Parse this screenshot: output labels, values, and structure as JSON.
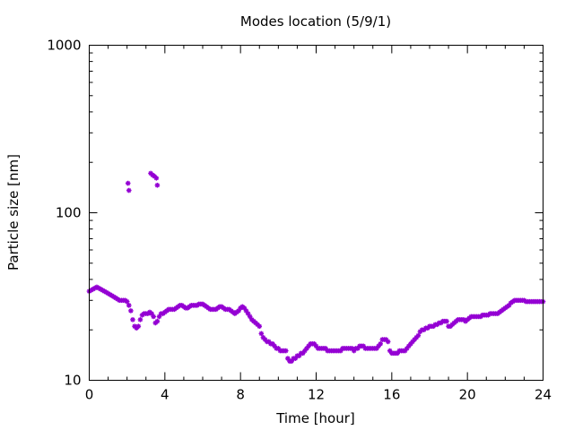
{
  "chart_data": {
    "type": "scatter",
    "title": "Modes location (5/9/1)",
    "xlabel": "Time [hour]",
    "ylabel": "Particle size [nm]",
    "xlim": [
      0,
      24
    ],
    "ylim": [
      10,
      1000
    ],
    "yscale": "log",
    "grid": false,
    "x_ticks": [
      0,
      4,
      8,
      12,
      16,
      20,
      24
    ],
    "x_tick_labels": [
      "0",
      "4",
      "8",
      "12",
      "16",
      "20",
      "24"
    ],
    "y_ticks": [
      10,
      100,
      1000
    ],
    "y_tick_labels": [
      "10",
      "100",
      "1000"
    ],
    "marker_color": "#9400d3",
    "series": [
      {
        "points": [
          [
            0.0,
            34
          ],
          [
            0.1,
            34.5
          ],
          [
            0.2,
            35
          ],
          [
            0.3,
            35.5
          ],
          [
            0.4,
            36
          ],
          [
            0.5,
            35.5
          ],
          [
            0.6,
            35
          ],
          [
            0.7,
            34.5
          ],
          [
            0.8,
            34
          ],
          [
            0.9,
            33.5
          ],
          [
            1.0,
            33
          ],
          [
            1.1,
            32.5
          ],
          [
            1.2,
            32
          ],
          [
            1.3,
            31.5
          ],
          [
            1.4,
            31
          ],
          [
            1.5,
            30.5
          ],
          [
            1.6,
            30
          ],
          [
            1.7,
            30
          ],
          [
            1.8,
            30
          ],
          [
            1.9,
            30
          ],
          [
            2.0,
            29.5
          ],
          [
            2.1,
            28
          ],
          [
            2.2,
            26
          ],
          [
            2.3,
            23
          ],
          [
            2.4,
            21
          ],
          [
            2.5,
            20.5
          ],
          [
            2.6,
            21
          ],
          [
            2.7,
            23
          ],
          [
            2.8,
            24.5
          ],
          [
            2.9,
            25
          ],
          [
            3.0,
            25
          ],
          [
            3.1,
            25
          ],
          [
            3.2,
            25.5
          ],
          [
            3.3,
            25
          ],
          [
            3.4,
            24
          ],
          [
            3.5,
            22
          ],
          [
            3.6,
            22.5
          ],
          [
            3.7,
            24
          ],
          [
            3.8,
            25
          ],
          [
            3.9,
            25
          ],
          [
            4.0,
            25.5
          ],
          [
            4.1,
            26
          ],
          [
            4.2,
            26.5
          ],
          [
            4.3,
            26.5
          ],
          [
            4.4,
            26.5
          ],
          [
            4.5,
            26.5
          ],
          [
            4.6,
            27
          ],
          [
            4.7,
            27.5
          ],
          [
            4.8,
            28
          ],
          [
            4.9,
            28
          ],
          [
            5.0,
            27.5
          ],
          [
            5.1,
            27
          ],
          [
            5.2,
            27
          ],
          [
            5.3,
            27.5
          ],
          [
            5.4,
            28
          ],
          [
            5.5,
            28
          ],
          [
            5.6,
            28
          ],
          [
            5.7,
            28
          ],
          [
            5.8,
            28.5
          ],
          [
            5.9,
            28.5
          ],
          [
            6.0,
            28.5
          ],
          [
            6.1,
            28
          ],
          [
            6.2,
            27.5
          ],
          [
            6.3,
            27
          ],
          [
            6.4,
            26.5
          ],
          [
            6.5,
            26.5
          ],
          [
            6.6,
            26.5
          ],
          [
            6.7,
            26.5
          ],
          [
            6.8,
            27
          ],
          [
            6.9,
            27.5
          ],
          [
            7.0,
            27.5
          ],
          [
            7.1,
            27
          ],
          [
            7.2,
            26.5
          ],
          [
            7.3,
            26.5
          ],
          [
            7.4,
            26.5
          ],
          [
            7.5,
            26
          ],
          [
            7.6,
            25.5
          ],
          [
            7.7,
            25
          ],
          [
            7.8,
            25.5
          ],
          [
            7.9,
            26
          ],
          [
            8.0,
            27
          ],
          [
            8.1,
            27.5
          ],
          [
            8.2,
            27
          ],
          [
            8.3,
            26
          ],
          [
            8.4,
            25
          ],
          [
            8.5,
            24
          ],
          [
            8.6,
            23
          ],
          [
            8.7,
            22.5
          ],
          [
            8.8,
            22
          ],
          [
            8.9,
            21.5
          ],
          [
            9.0,
            21
          ],
          [
            9.1,
            19
          ],
          [
            9.2,
            18
          ],
          [
            9.3,
            17.5
          ],
          [
            9.4,
            17
          ],
          [
            9.5,
            17
          ],
          [
            9.6,
            16.5
          ],
          [
            9.7,
            16.5
          ],
          [
            9.8,
            16
          ],
          [
            9.9,
            15.5
          ],
          [
            10.0,
            15.5
          ],
          [
            10.1,
            15
          ],
          [
            10.2,
            15
          ],
          [
            10.3,
            15
          ],
          [
            10.4,
            15
          ],
          [
            10.5,
            13.5
          ],
          [
            10.6,
            13
          ],
          [
            10.7,
            13
          ],
          [
            10.8,
            13.5
          ],
          [
            10.9,
            13.5
          ],
          [
            11.0,
            14
          ],
          [
            11.1,
            14
          ],
          [
            11.2,
            14.5
          ],
          [
            11.3,
            14.5
          ],
          [
            11.4,
            15
          ],
          [
            11.5,
            15.5
          ],
          [
            11.6,
            16
          ],
          [
            11.7,
            16.5
          ],
          [
            11.8,
            16.5
          ],
          [
            11.9,
            16.5
          ],
          [
            12.0,
            16
          ],
          [
            12.1,
            15.5
          ],
          [
            12.2,
            15.5
          ],
          [
            12.3,
            15.5
          ],
          [
            12.4,
            15.5
          ],
          [
            12.5,
            15.5
          ],
          [
            12.6,
            15
          ],
          [
            12.7,
            15
          ],
          [
            12.8,
            15
          ],
          [
            12.9,
            15
          ],
          [
            13.0,
            15
          ],
          [
            13.1,
            15
          ],
          [
            13.2,
            15
          ],
          [
            13.3,
            15
          ],
          [
            13.4,
            15.5
          ],
          [
            13.5,
            15.5
          ],
          [
            13.6,
            15.5
          ],
          [
            13.7,
            15.5
          ],
          [
            13.8,
            15.5
          ],
          [
            13.9,
            15.5
          ],
          [
            14.0,
            15
          ],
          [
            14.1,
            15.5
          ],
          [
            14.2,
            15.5
          ],
          [
            14.3,
            16
          ],
          [
            14.4,
            16
          ],
          [
            14.5,
            16
          ],
          [
            14.6,
            15.5
          ],
          [
            14.7,
            15.5
          ],
          [
            14.8,
            15.5
          ],
          [
            14.9,
            15.5
          ],
          [
            15.0,
            15.5
          ],
          [
            15.1,
            15.5
          ],
          [
            15.2,
            15.5
          ],
          [
            15.3,
            16
          ],
          [
            15.4,
            16.5
          ],
          [
            15.5,
            17.5
          ],
          [
            15.6,
            17.5
          ],
          [
            15.7,
            17.5
          ],
          [
            15.8,
            17
          ],
          [
            15.9,
            15
          ],
          [
            16.0,
            14.5
          ],
          [
            16.1,
            14.5
          ],
          [
            16.2,
            14.5
          ],
          [
            16.3,
            14.5
          ],
          [
            16.4,
            15
          ],
          [
            16.5,
            15
          ],
          [
            16.6,
            15
          ],
          [
            16.7,
            15
          ],
          [
            16.8,
            15.5
          ],
          [
            16.9,
            16
          ],
          [
            17.0,
            16.5
          ],
          [
            17.1,
            17
          ],
          [
            17.2,
            17.5
          ],
          [
            17.3,
            18
          ],
          [
            17.4,
            18.5
          ],
          [
            17.5,
            19.5
          ],
          [
            17.6,
            20
          ],
          [
            17.7,
            20
          ],
          [
            17.8,
            20.5
          ],
          [
            17.9,
            20.5
          ],
          [
            18.0,
            21
          ],
          [
            18.1,
            21
          ],
          [
            18.2,
            21
          ],
          [
            18.3,
            21.5
          ],
          [
            18.4,
            21.5
          ],
          [
            18.5,
            22
          ],
          [
            18.6,
            22
          ],
          [
            18.7,
            22.5
          ],
          [
            18.8,
            22.5
          ],
          [
            18.9,
            22.5
          ],
          [
            19.0,
            21
          ],
          [
            19.1,
            21
          ],
          [
            19.2,
            21.5
          ],
          [
            19.3,
            22
          ],
          [
            19.4,
            22.5
          ],
          [
            19.5,
            23
          ],
          [
            19.6,
            23
          ],
          [
            19.7,
            23
          ],
          [
            19.8,
            23
          ],
          [
            19.9,
            22.5
          ],
          [
            20.0,
            23
          ],
          [
            20.1,
            23.5
          ],
          [
            20.2,
            24
          ],
          [
            20.3,
            24
          ],
          [
            20.4,
            24
          ],
          [
            20.5,
            24
          ],
          [
            20.6,
            24
          ],
          [
            20.7,
            24
          ],
          [
            20.8,
            24.5
          ],
          [
            20.9,
            24.5
          ],
          [
            21.0,
            24.5
          ],
          [
            21.1,
            24.5
          ],
          [
            21.2,
            25
          ],
          [
            21.3,
            25
          ],
          [
            21.4,
            25
          ],
          [
            21.5,
            25
          ],
          [
            21.6,
            25
          ],
          [
            21.7,
            25.5
          ],
          [
            21.8,
            26
          ],
          [
            21.9,
            26.5
          ],
          [
            22.0,
            27
          ],
          [
            22.1,
            27.5
          ],
          [
            22.2,
            28
          ],
          [
            22.3,
            29
          ],
          [
            22.4,
            29.5
          ],
          [
            22.5,
            30
          ],
          [
            22.6,
            30
          ],
          [
            22.7,
            30
          ],
          [
            22.8,
            30
          ],
          [
            22.9,
            30
          ],
          [
            23.0,
            30
          ],
          [
            23.1,
            29.5
          ],
          [
            23.2,
            29.5
          ],
          [
            23.3,
            29.5
          ],
          [
            23.4,
            29.5
          ],
          [
            23.5,
            29.5
          ],
          [
            23.6,
            29.5
          ],
          [
            23.7,
            29.5
          ],
          [
            23.8,
            29.5
          ],
          [
            23.9,
            29.5
          ],
          [
            24.0,
            29.5
          ],
          [
            2.05,
            150
          ],
          [
            2.1,
            136
          ],
          [
            3.25,
            172
          ],
          [
            3.35,
            168
          ],
          [
            3.45,
            165
          ],
          [
            3.55,
            161
          ],
          [
            3.6,
            146
          ]
        ]
      }
    ]
  }
}
